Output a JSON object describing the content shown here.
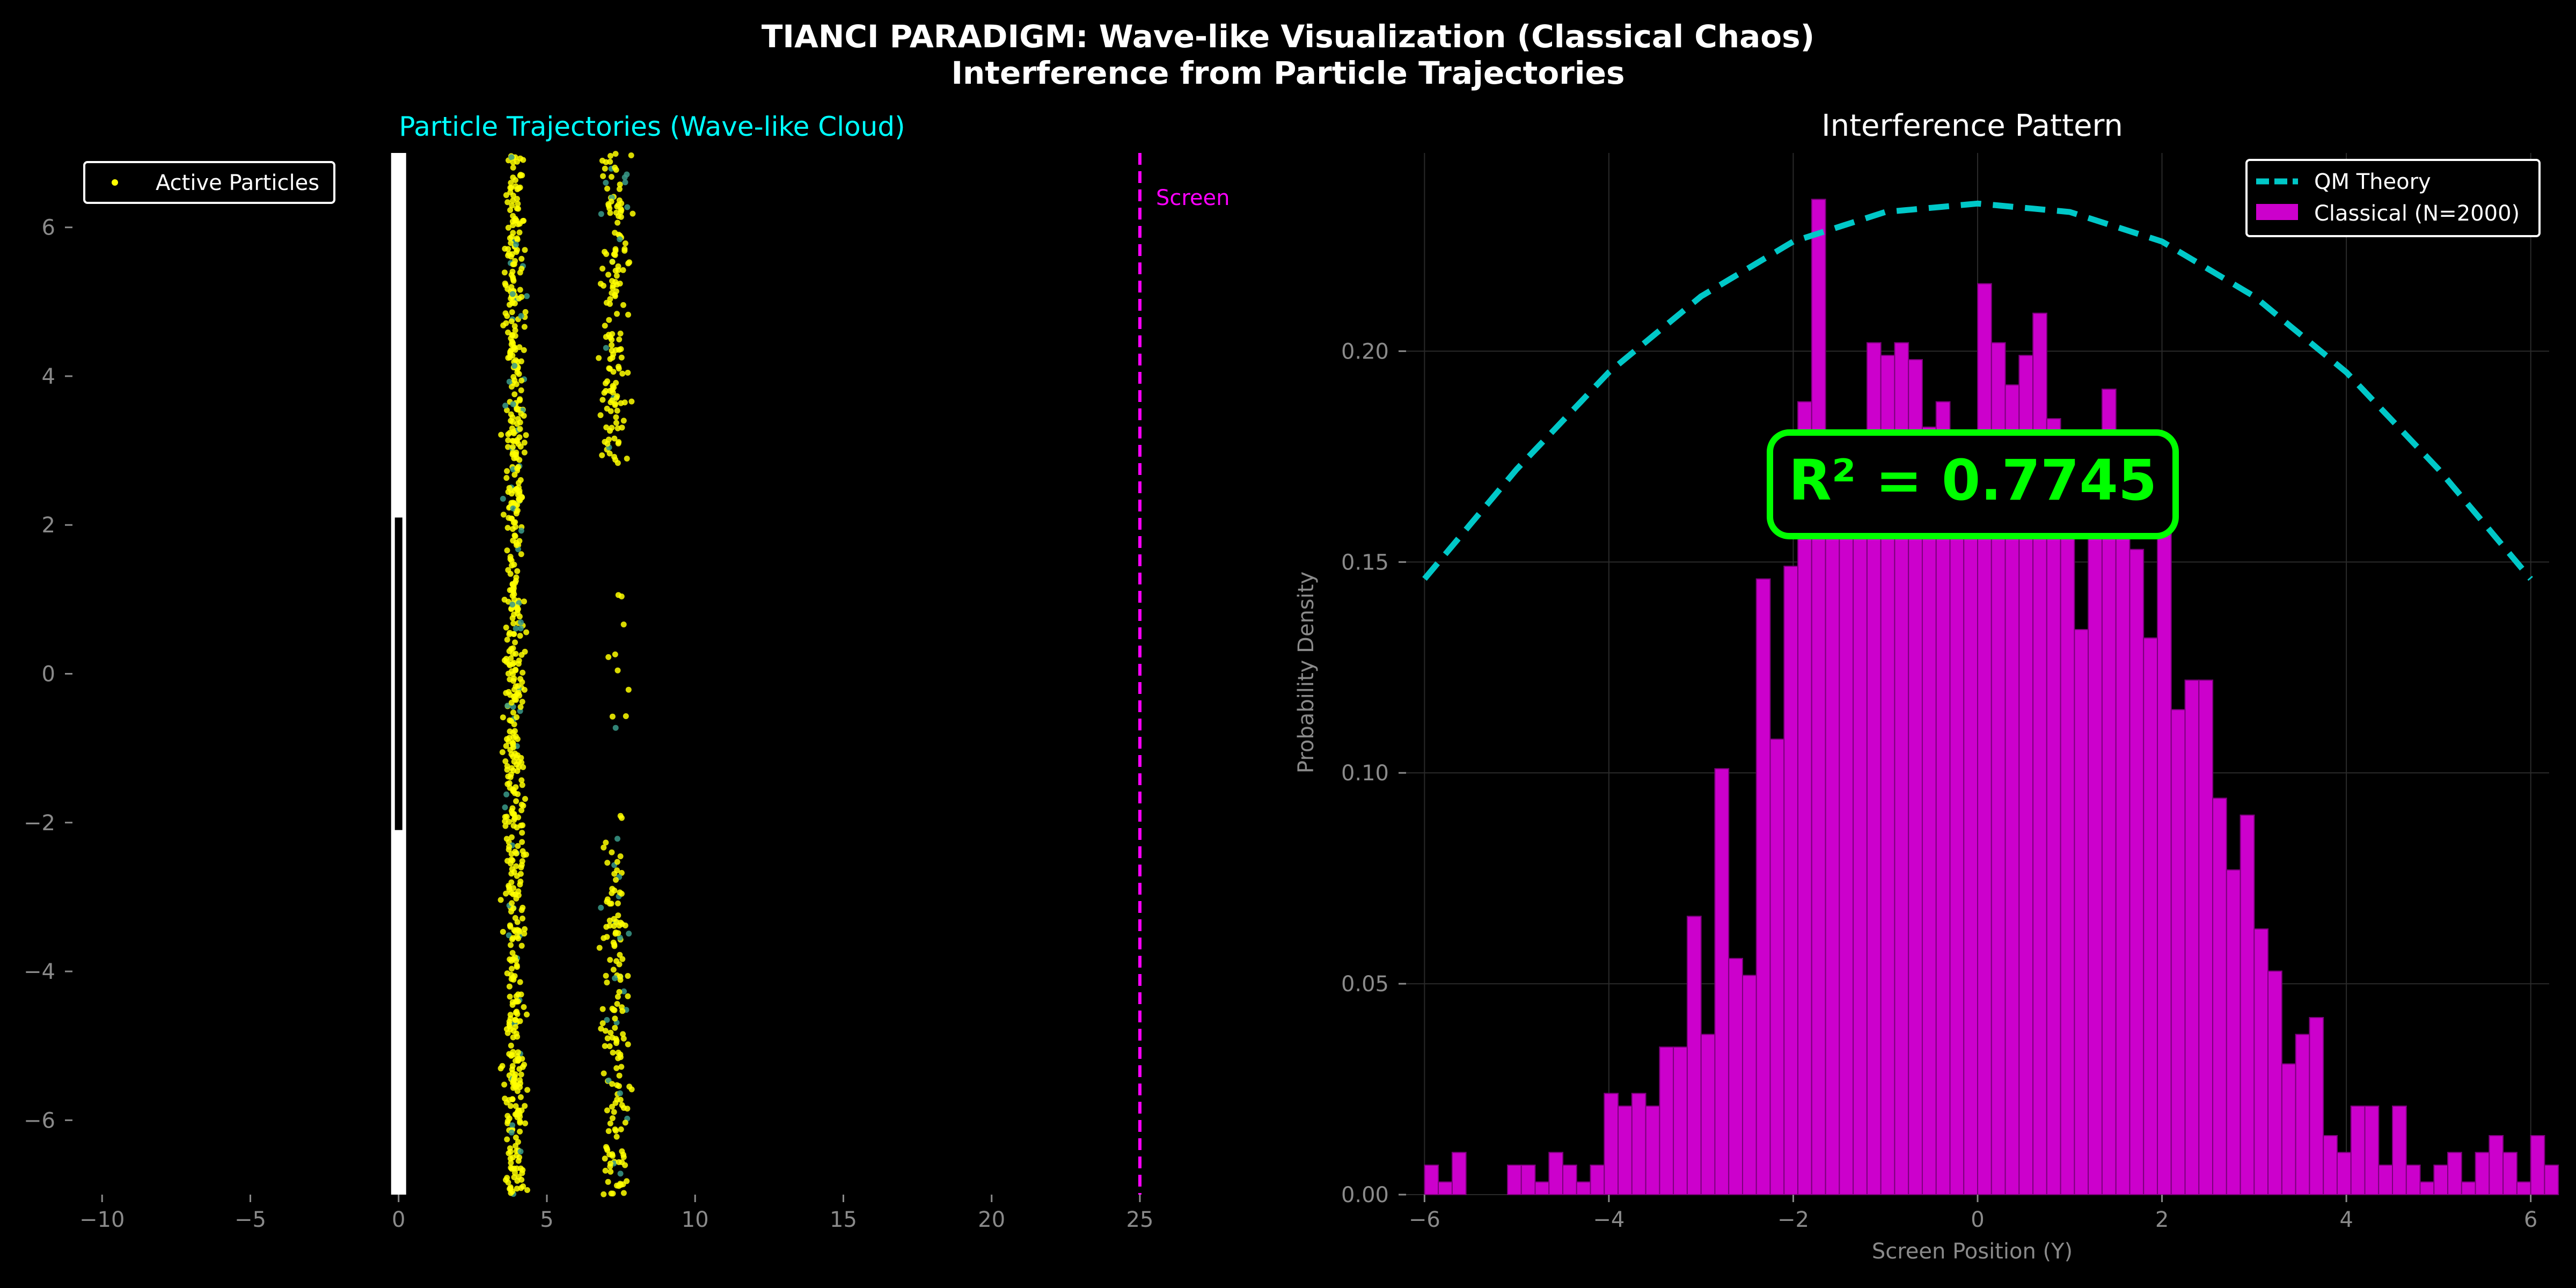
{
  "figure": {
    "suptitle_line1": "TIANCI PARADIGM: Wave-like Visualization (Classical Chaos)",
    "suptitle_line2": "Interference from Particle Trajectories"
  },
  "colors": {
    "background": "#000000",
    "particles": "#ffff00",
    "qm_curve": "#00c8c8",
    "histogram": "#cc00cc",
    "r2_box": "#00ff00",
    "screen_line": "#ff00ff",
    "left_title": "#00ffff",
    "barrier": "#ffffff"
  },
  "chart_data": [
    {
      "type": "scatter",
      "title": "Particle Trajectories (Wave-like Cloud)",
      "xlabel": "",
      "ylabel": "",
      "xlim": [
        -11,
        29
      ],
      "ylim": [
        -7,
        7
      ],
      "xticks": [
        -10,
        -5,
        0,
        5,
        10,
        15,
        20,
        25
      ],
      "yticks": [
        -6,
        -4,
        -2,
        0,
        2,
        4,
        6
      ],
      "grid": false,
      "legend": {
        "position": "top-left",
        "entries": [
          "Active Particles"
        ]
      },
      "barrier": {
        "x": 0,
        "slits": [
          [
            -7,
            -2.1
          ],
          [
            2.1,
            7
          ]
        ],
        "blocked": [
          -2.1,
          2.1
        ]
      },
      "screen": {
        "x": 25,
        "label": "Screen"
      },
      "series": [
        {
          "name": "Active Particles",
          "clusters": [
            {
              "x_center": 3.9,
              "x_spread": 0.35,
              "y_range": [
                -7,
                7
              ],
              "count": 700
            },
            {
              "x_center": 7.3,
              "x_spread": 0.45,
              "y_range": [
                2.8,
                7
              ],
              "count": 160
            },
            {
              "x_center": 7.3,
              "x_spread": 0.45,
              "y_range": [
                -7,
                -2.2
              ],
              "count": 160
            },
            {
              "x_center": 7.4,
              "x_spread": 0.3,
              "y_range": [
                -2,
                2.5
              ],
              "count": 12
            }
          ]
        }
      ]
    },
    {
      "type": "bar",
      "title": "Interference Pattern",
      "xlabel": "Screen Position (Y)",
      "ylabel": "Probability Density",
      "xlim": [
        -6.2,
        6.2
      ],
      "ylim": [
        0,
        0.247
      ],
      "xticks": [
        -6,
        -4,
        -2,
        0,
        2,
        4,
        6
      ],
      "yticks": [
        "0.00",
        "0.05",
        "0.10",
        "0.15",
        "0.20"
      ],
      "grid": true,
      "legend": {
        "position": "top-right",
        "entries": [
          "QM Theory",
          "Classical (N=2000)"
        ]
      },
      "annotation": "R² = 0.7745",
      "series": [
        {
          "name": "QM Theory",
          "kind": "line",
          "style": "dashed",
          "x": [
            -6,
            -5,
            -4,
            -3,
            -2,
            -1,
            0,
            1,
            2,
            3,
            4,
            5,
            6
          ],
          "y": [
            0.146,
            0.172,
            0.195,
            0.213,
            0.226,
            0.233,
            0.235,
            0.233,
            0.226,
            0.213,
            0.195,
            0.172,
            0.146
          ]
        },
        {
          "name": "Classical (N=2000)",
          "kind": "histogram",
          "bin_start": -6.0,
          "bin_width": 0.15,
          "values": [
            0.007,
            0.003,
            0.01,
            0.0,
            0.0,
            0.0,
            0.007,
            0.007,
            0.003,
            0.01,
            0.007,
            0.003,
            0.007,
            0.024,
            0.021,
            0.024,
            0.021,
            0.035,
            0.035,
            0.066,
            0.038,
            0.101,
            0.056,
            0.052,
            0.146,
            0.108,
            0.149,
            0.188,
            0.236,
            0.157,
            0.167,
            0.174,
            0.202,
            0.199,
            0.202,
            0.198,
            0.182,
            0.188,
            0.172,
            0.174,
            0.216,
            0.202,
            0.192,
            0.199,
            0.209,
            0.184,
            0.165,
            0.134,
            0.17,
            0.191,
            0.167,
            0.153,
            0.132,
            0.157,
            0.115,
            0.122,
            0.122,
            0.094,
            0.077,
            0.09,
            0.063,
            0.053,
            0.031,
            0.038,
            0.042,
            0.014,
            0.01,
            0.021,
            0.021,
            0.007,
            0.021,
            0.007,
            0.003,
            0.007,
            0.01,
            0.003,
            0.01,
            0.014,
            0.01,
            0.003,
            0.014,
            0.007
          ]
        }
      ]
    }
  ]
}
